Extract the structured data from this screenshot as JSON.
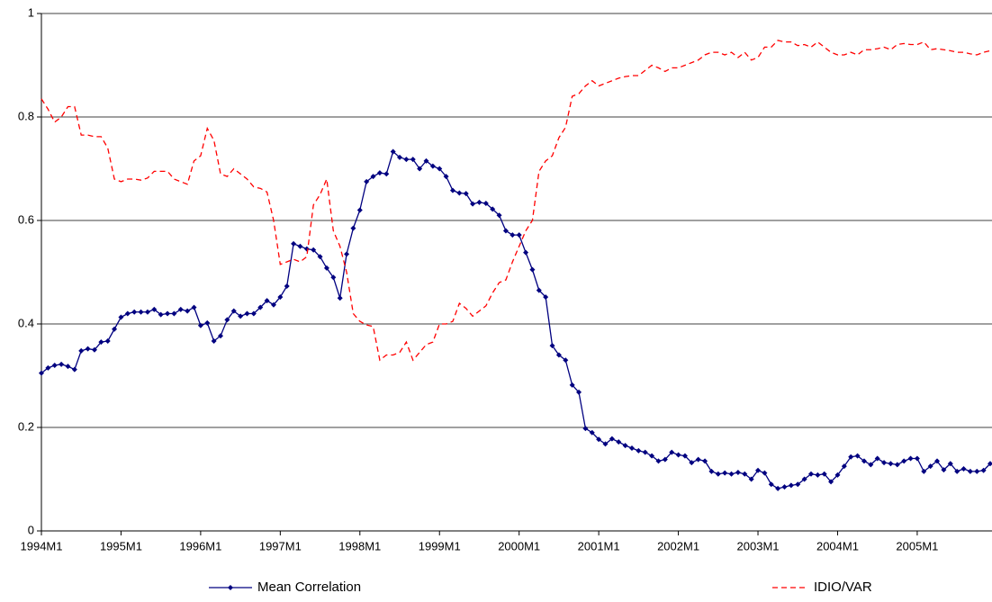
{
  "chart_data": {
    "type": "line",
    "categories": [
      "1994M1",
      null,
      null,
      null,
      null,
      null,
      null,
      null,
      null,
      null,
      null,
      null,
      "1995M1",
      null,
      null,
      null,
      null,
      null,
      null,
      null,
      null,
      null,
      null,
      null,
      "1996M1",
      null,
      null,
      null,
      null,
      null,
      null,
      null,
      null,
      null,
      null,
      null,
      "1997M1",
      null,
      null,
      null,
      null,
      null,
      null,
      null,
      null,
      null,
      null,
      null,
      "1998M1",
      null,
      null,
      null,
      null,
      null,
      null,
      null,
      null,
      null,
      null,
      null,
      "1999M1",
      null,
      null,
      null,
      null,
      null,
      null,
      null,
      null,
      null,
      null,
      null,
      "2000M1",
      null,
      null,
      null,
      null,
      null,
      null,
      null,
      null,
      null,
      null,
      null,
      "2001M1",
      null,
      null,
      null,
      null,
      null,
      null,
      null,
      null,
      null,
      null,
      null,
      "2002M1",
      null,
      null,
      null,
      null,
      null,
      null,
      null,
      null,
      null,
      null,
      null,
      "2003M1",
      null,
      null,
      null,
      null,
      null,
      null,
      null,
      null,
      null,
      null,
      null,
      "2004M1",
      null,
      null,
      null,
      null,
      null,
      null,
      null,
      null,
      null,
      null,
      null,
      "2005M1",
      null,
      null,
      null,
      null,
      null,
      null,
      null,
      null,
      null,
      null,
      null
    ],
    "series": [
      {
        "name": "Mean Correlation",
        "color": "#000080",
        "marker": "diamond",
        "values": [
          0.305,
          0.315,
          0.32,
          0.322,
          0.318,
          0.312,
          0.348,
          0.352,
          0.35,
          0.365,
          0.367,
          0.39,
          0.413,
          0.42,
          0.423,
          0.423,
          0.423,
          0.428,
          0.418,
          0.42,
          0.42,
          0.428,
          0.425,
          0.432,
          0.397,
          0.402,
          0.367,
          0.377,
          0.408,
          0.425,
          0.415,
          0.42,
          0.42,
          0.432,
          0.445,
          0.437,
          0.452,
          0.473,
          0.555,
          0.55,
          0.545,
          0.543,
          0.53,
          0.508,
          0.49,
          0.45,
          0.535,
          0.585,
          0.62,
          0.675,
          0.685,
          0.692,
          0.69,
          0.733,
          0.722,
          0.718,
          0.718,
          0.7,
          0.715,
          0.705,
          0.7,
          0.685,
          0.658,
          0.653,
          0.652,
          0.632,
          0.635,
          0.633,
          0.622,
          0.61,
          0.58,
          0.572,
          0.572,
          0.538,
          0.505,
          0.465,
          0.452,
          0.358,
          0.34,
          0.33,
          0.282,
          0.268,
          0.198,
          0.19,
          0.177,
          0.168,
          0.178,
          0.172,
          0.165,
          0.16,
          0.155,
          0.152,
          0.145,
          0.135,
          0.138,
          0.152,
          0.147,
          0.145,
          0.132,
          0.138,
          0.135,
          0.115,
          0.11,
          0.112,
          0.11,
          0.113,
          0.11,
          0.1,
          0.117,
          0.112,
          0.09,
          0.082,
          0.085,
          0.088,
          0.09,
          0.1,
          0.11,
          0.108,
          0.11,
          0.095,
          0.108,
          0.125,
          0.143,
          0.145,
          0.135,
          0.128,
          0.14,
          0.132,
          0.13,
          0.128,
          0.135,
          0.14,
          0.14,
          0.115,
          0.125,
          0.135,
          0.118,
          0.13,
          0.115,
          0.12,
          0.115,
          0.115,
          0.117,
          0.13
        ]
      },
      {
        "name": "IDIO/VAR",
        "color": "#ff0000",
        "dashed": true,
        "values": [
          0.835,
          0.815,
          0.79,
          0.8,
          0.82,
          0.82,
          0.765,
          0.765,
          0.762,
          0.762,
          0.74,
          0.68,
          0.675,
          0.68,
          0.68,
          0.678,
          0.682,
          0.695,
          0.695,
          0.695,
          0.68,
          0.675,
          0.67,
          0.715,
          0.725,
          0.778,
          0.755,
          0.69,
          0.685,
          0.7,
          0.69,
          0.68,
          0.665,
          0.662,
          0.655,
          0.6,
          0.515,
          0.52,
          0.525,
          0.52,
          0.53,
          0.63,
          0.65,
          0.68,
          0.58,
          0.55,
          0.5,
          0.42,
          0.405,
          0.398,
          0.395,
          0.33,
          0.34,
          0.34,
          0.345,
          0.365,
          0.33,
          0.345,
          0.36,
          0.365,
          0.4,
          0.4,
          0.405,
          0.44,
          0.43,
          0.415,
          0.425,
          0.435,
          0.46,
          0.48,
          0.485,
          0.52,
          0.55,
          0.58,
          0.6,
          0.695,
          0.715,
          0.725,
          0.76,
          0.78,
          0.84,
          0.845,
          0.86,
          0.87,
          0.86,
          0.865,
          0.87,
          0.875,
          0.878,
          0.88,
          0.88,
          0.89,
          0.9,
          0.895,
          0.888,
          0.895,
          0.895,
          0.9,
          0.905,
          0.91,
          0.92,
          0.925,
          0.925,
          0.92,
          0.925,
          0.915,
          0.925,
          0.91,
          0.915,
          0.935,
          0.935,
          0.948,
          0.945,
          0.945,
          0.938,
          0.94,
          0.935,
          0.945,
          0.935,
          0.925,
          0.92,
          0.92,
          0.925,
          0.92,
          0.93,
          0.93,
          0.932,
          0.935,
          0.93,
          0.94,
          0.942,
          0.94,
          0.94,
          0.945,
          0.93,
          0.932,
          0.93,
          0.928,
          0.925,
          0.925,
          0.922,
          0.92,
          0.925,
          0.928
        ]
      }
    ],
    "ylim": [
      0,
      1
    ],
    "yticks": [
      0,
      0.2,
      0.4,
      0.6,
      0.8,
      1
    ],
    "grid": true,
    "legend": "bottom"
  }
}
